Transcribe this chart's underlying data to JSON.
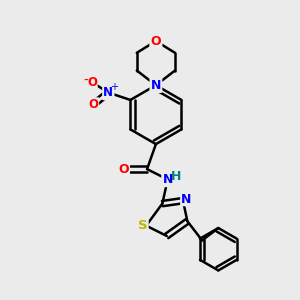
{
  "bg_color": "#ebebeb",
  "bond_color": "#000000",
  "N_color": "#0000ff",
  "O_color": "#ff0000",
  "S_color": "#bbbb00",
  "NH_color": "#008080",
  "line_width": 1.8,
  "figsize": [
    3.0,
    3.0
  ],
  "dpi": 100,
  "xlim": [
    0,
    10
  ],
  "ylim": [
    0,
    10
  ]
}
